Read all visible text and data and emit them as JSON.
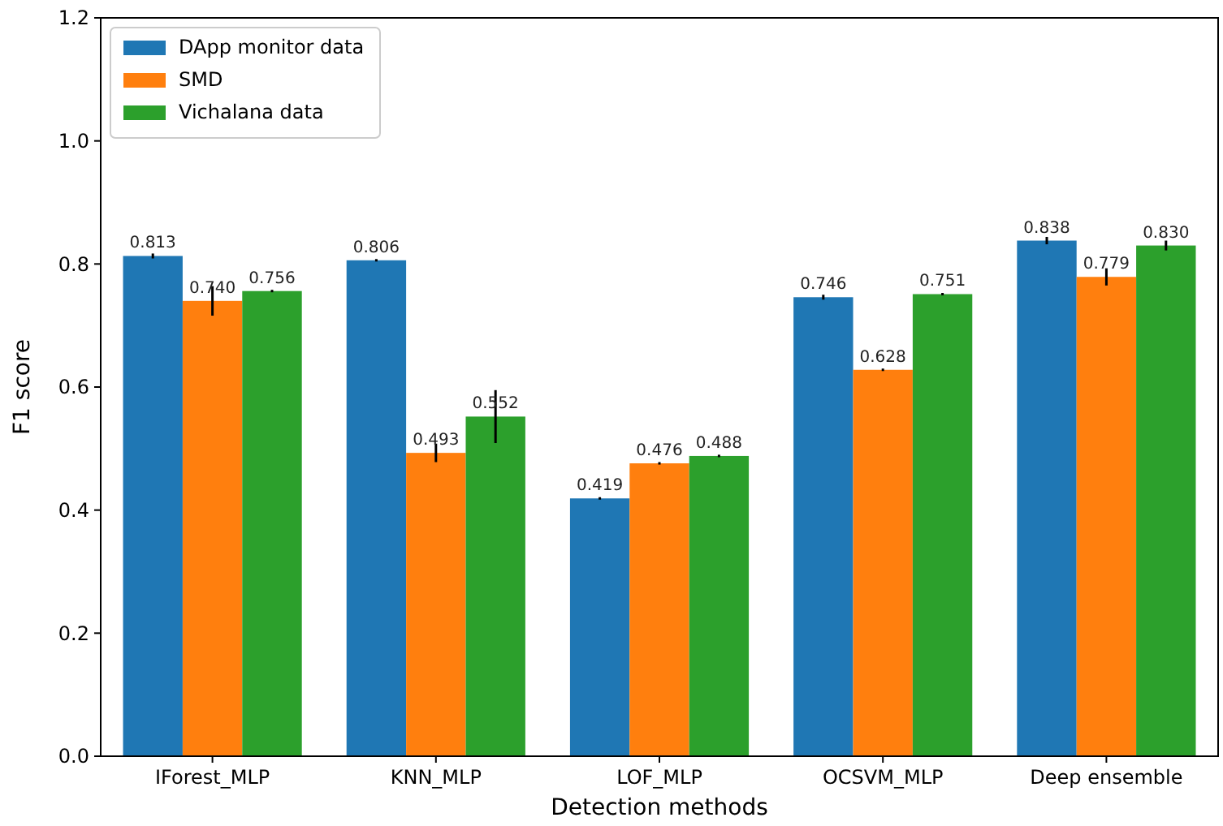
{
  "chart_data": {
    "type": "bar",
    "xlabel": "Detection methods",
    "ylabel": "F1 score",
    "categories": [
      "IForest_MLP",
      "KNN_MLP",
      "LOF_MLP",
      "OCSVM_MLP",
      "Deep ensemble"
    ],
    "series": [
      {
        "name": "DApp monitor data",
        "color": "#1f77b4",
        "values": [
          0.813,
          0.806,
          0.419,
          0.746,
          0.838
        ],
        "errors": [
          0.004,
          0.002,
          0.002,
          0.004,
          0.006
        ],
        "value_labels": [
          "0.813",
          "0.806",
          "0.419",
          "0.746",
          "0.838"
        ]
      },
      {
        "name": "SMD",
        "color": "#ff7f0e",
        "values": [
          0.74,
          0.493,
          0.476,
          0.628,
          0.779
        ],
        "errors": [
          0.024,
          0.015,
          0.002,
          0.002,
          0.014
        ],
        "value_labels": [
          "0.740",
          "0.493",
          "0.476",
          "0.628",
          "0.779"
        ]
      },
      {
        "name": "Vichalana data",
        "color": "#2ca02c",
        "values": [
          0.756,
          0.552,
          0.488,
          0.751,
          0.83
        ],
        "errors": [
          0.002,
          0.043,
          0.002,
          0.002,
          0.008
        ],
        "value_labels": [
          "0.756",
          "0.552",
          "0.488",
          "0.751",
          "0.830"
        ]
      }
    ],
    "ylim": [
      0,
      1.2
    ],
    "yticks": [
      {
        "value": 0,
        "label": "0.0"
      },
      {
        "value": 0.2,
        "label": "0.2"
      },
      {
        "value": 0.4,
        "label": "0.4"
      },
      {
        "value": 0.6,
        "label": "0.6"
      },
      {
        "value": 0.8,
        "label": "0.8"
      },
      {
        "value": 1,
        "label": "1.0"
      },
      {
        "value": 1.2,
        "label": "1.2"
      }
    ],
    "legend": "top left",
    "grid": false
  }
}
